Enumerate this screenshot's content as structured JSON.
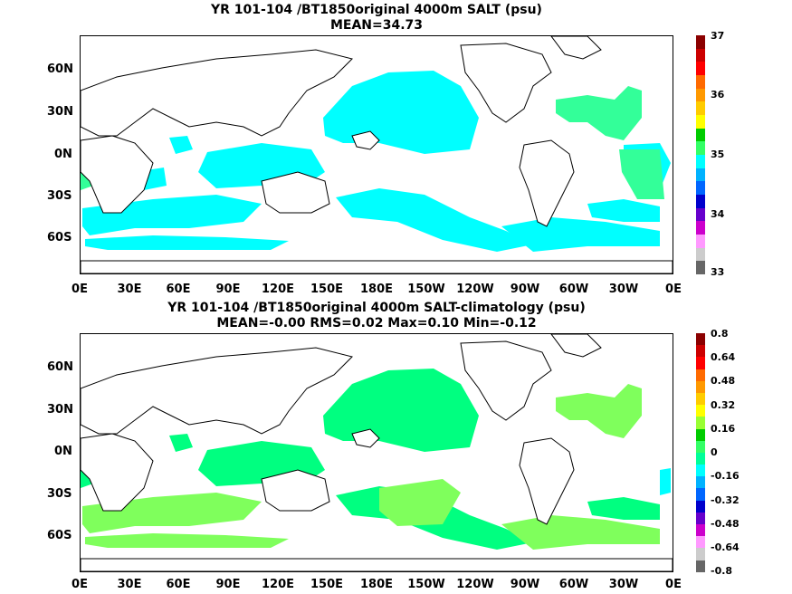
{
  "panels": [
    {
      "title_line1": "YR 101-104 /BT1850original 4000m SALT (psu)",
      "title_line2": "MEAN=34.73",
      "lat_labels": [
        "60N",
        "30N",
        "0N",
        "30S",
        "60S"
      ],
      "lon_labels": [
        "0E",
        "30E",
        "60E",
        "90E",
        "120E",
        "150E",
        "180E",
        "150W",
        "120W",
        "90W",
        "60W",
        "30W",
        "0E"
      ],
      "colorbar_labels": [
        "37",
        "36",
        "35",
        "34",
        "33"
      ],
      "colorbar_colors": [
        "#8b0000",
        "#cc0000",
        "#ff0000",
        "#ff6a00",
        "#ff9900",
        "#ffcc00",
        "#ffff00",
        "#00cc00",
        "#33ff66",
        "#00ffff",
        "#00b2ff",
        "#0066ff",
        "#0000cc",
        "#6600cc",
        "#cc00cc",
        "#ff99ff",
        "#cccccc",
        "#666666"
      ],
      "field_color": "#00ffff",
      "secondary_color": "#33ff99"
    },
    {
      "title_line1": "YR 101-104 /BT1850original 4000m SALT-climatology (psu)",
      "title_line2": "MEAN=-0.00   RMS=0.02   Max=0.10   Min=-0.12",
      "lat_labels": [
        "60N",
        "30N",
        "0N",
        "30S",
        "60S"
      ],
      "lon_labels": [
        "0E",
        "30E",
        "60E",
        "90E",
        "120E",
        "150E",
        "180E",
        "150W",
        "120W",
        "90W",
        "60W",
        "30W",
        "0E"
      ],
      "colorbar_labels": [
        "0.8",
        "0.64",
        "0.48",
        "0.32",
        "0.16",
        "0",
        "-0.16",
        "-0.32",
        "-0.48",
        "-0.64",
        "-0.8"
      ],
      "colorbar_colors": [
        "#8b0000",
        "#cc0000",
        "#ff0000",
        "#ff6a00",
        "#ff9900",
        "#ffcc00",
        "#ffff00",
        "#99ff33",
        "#00cc00",
        "#33ff66",
        "#00ff99",
        "#00ffff",
        "#00b2ff",
        "#0066ff",
        "#0000cc",
        "#6600cc",
        "#cc00cc",
        "#ff99ff",
        "#cccccc",
        "#666666"
      ],
      "field_color": "#00ff80",
      "secondary_color": "#7fff5c"
    }
  ]
}
